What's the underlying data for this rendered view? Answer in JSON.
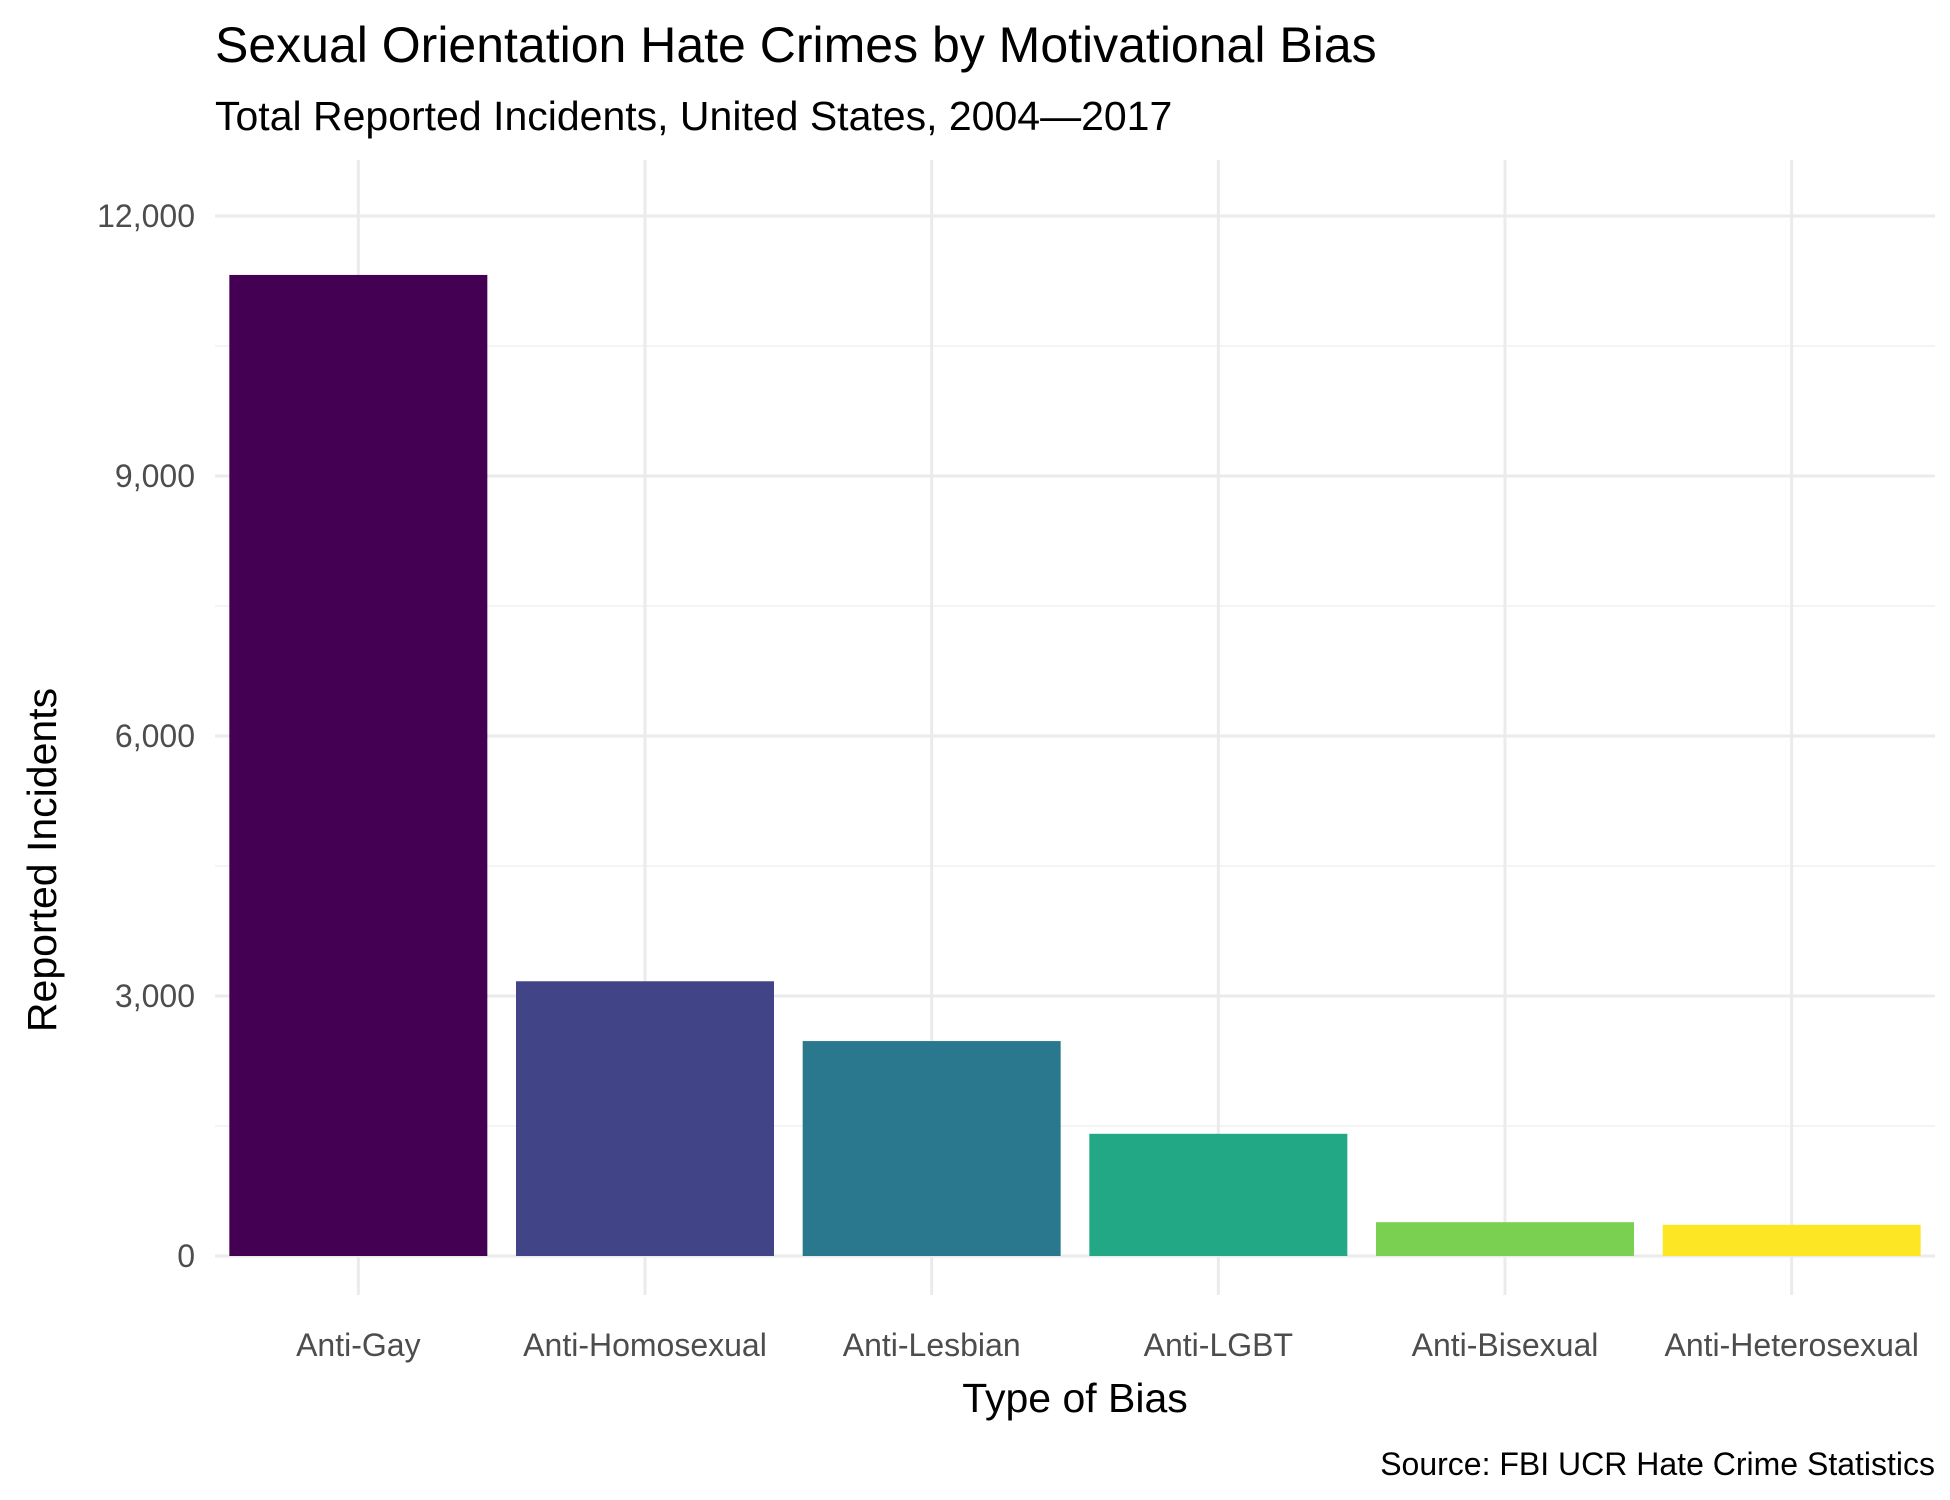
{
  "chart_data": {
    "type": "bar",
    "title": "Sexual Orientation Hate Crimes by Motivational Bias",
    "subtitle": "Total Reported Incidents, United States, 2004—2017",
    "xlabel": "Type of Bias",
    "ylabel": "Reported Incidents",
    "caption": "Source: FBI UCR Hate Crime Statistics",
    "categories": [
      "Anti-Gay",
      "Anti-Homosexual",
      "Anti-Lesbian",
      "Anti-LGBT",
      "Anti-Bisexual",
      "Anti-Heterosexual"
    ],
    "values": [
      11320,
      3170,
      2480,
      1410,
      390,
      360
    ],
    "colors": [
      "#440154",
      "#414487",
      "#2a788e",
      "#22a884",
      "#7ad151",
      "#fde725"
    ],
    "ylim": [
      0,
      12000
    ],
    "yticks": [
      0,
      3000,
      6000,
      9000,
      12000
    ],
    "ytick_labels": [
      "0",
      "3,000",
      "6,000",
      "9,000",
      "12,000"
    ],
    "grid": true,
    "legend": "none"
  }
}
